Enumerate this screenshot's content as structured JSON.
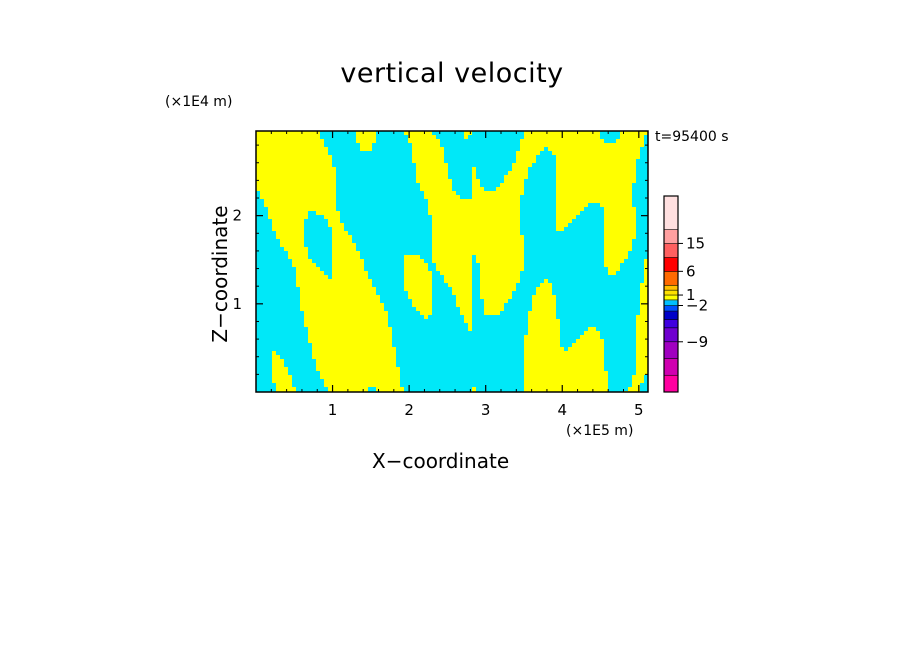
{
  "chart_data": {
    "type": "heatmap",
    "title": "vertical velocity",
    "xlabel": "X−coordinate",
    "ylabel": "Z−coordinate",
    "x_unit": "(×1E5 m)",
    "y_unit": "(×1E4 m)",
    "time_label": "t=95400 s",
    "x_range": [
      0,
      5.12
    ],
    "y_range": [
      0,
      2.96
    ],
    "x_ticks": [
      "1",
      "2",
      "3",
      "4",
      "5"
    ],
    "y_ticks": [
      "1",
      "2"
    ],
    "field_colors": {
      "positive": "#ffff00",
      "negative": "#00e8f8"
    },
    "colorbar": {
      "tick_labels": [
        "15",
        "6",
        "1",
        "−2",
        "−9"
      ],
      "colors": [
        "#ff00a0",
        "#d000b0",
        "#a000c0",
        "#7000d0",
        "#4000e0",
        "#0000c8",
        "#0050ff",
        "#00c0ff",
        "#ffff00",
        "#ffe000",
        "#ffc000",
        "#ff6a00",
        "#ff0000",
        "#ff6060",
        "#ffa0a0",
        "#ffe0e0"
      ]
    }
  }
}
